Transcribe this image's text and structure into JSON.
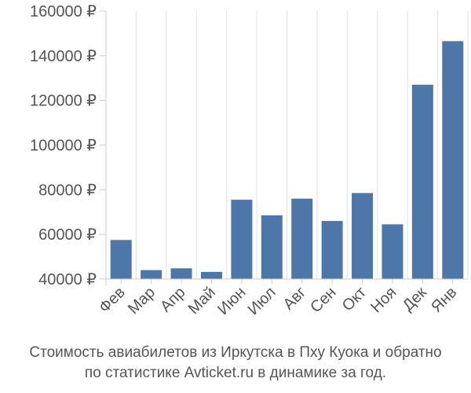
{
  "chart_data": {
    "type": "bar",
    "categories": [
      "Фев",
      "Мар",
      "Апр",
      "Май",
      "Июн",
      "Июл",
      "Авг",
      "Сен",
      "Окт",
      "Ноя",
      "Дек",
      "Янв"
    ],
    "values": [
      57500,
      44000,
      44800,
      43200,
      75500,
      68500,
      76000,
      66000,
      78500,
      64500,
      127000,
      146500
    ],
    "ylim": [
      40000,
      160000
    ],
    "y_ticks": [
      40000,
      60000,
      80000,
      100000,
      120000,
      140000,
      160000
    ],
    "y_tick_labels": [
      "40000 ₽",
      "60000 ₽",
      "80000 ₽",
      "100000 ₽",
      "120000 ₽",
      "140000 ₽",
      "160000 ₽"
    ],
    "grid": "vertical",
    "bar_color": "#4d77a8",
    "caption": [
      "Стоимость авиабилетов из Иркутска в Пху Куока и обратно",
      "по статистике Avticket.ru в динамике за год."
    ]
  }
}
